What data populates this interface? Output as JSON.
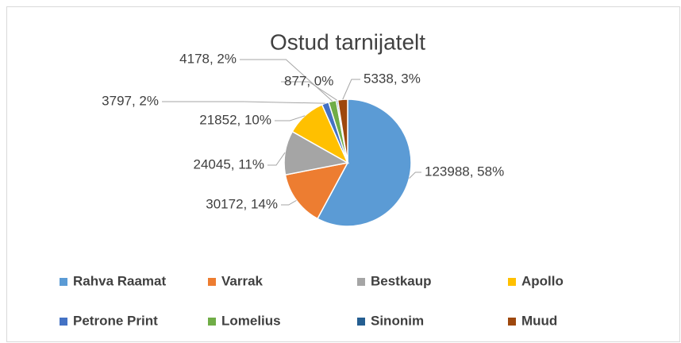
{
  "chart_data": {
    "type": "pie",
    "title": "Ostud tarnijatelt",
    "categories": [
      "Rahva Raamat",
      "Varrak",
      "Bestkaup",
      "Apollo",
      "Petrone Print",
      "Lomelius",
      "Sinonim",
      "Muud"
    ],
    "values": [
      123988,
      30172,
      24045,
      21852,
      3797,
      4178,
      877,
      5338
    ],
    "value_labels": [
      "123988, 58%",
      "30172, 14%",
      "24045, 11%",
      "21852, 10%",
      "3797, 2%",
      "4178, 2%",
      "877, 0%",
      "5338, 3%"
    ],
    "colors": [
      "#5b9bd5",
      "#ed7d31",
      "#a5a5a5",
      "#ffc000",
      "#4472c4",
      "#70ad47",
      "#255e91",
      "#9e480e"
    ],
    "legend": "bottom"
  }
}
